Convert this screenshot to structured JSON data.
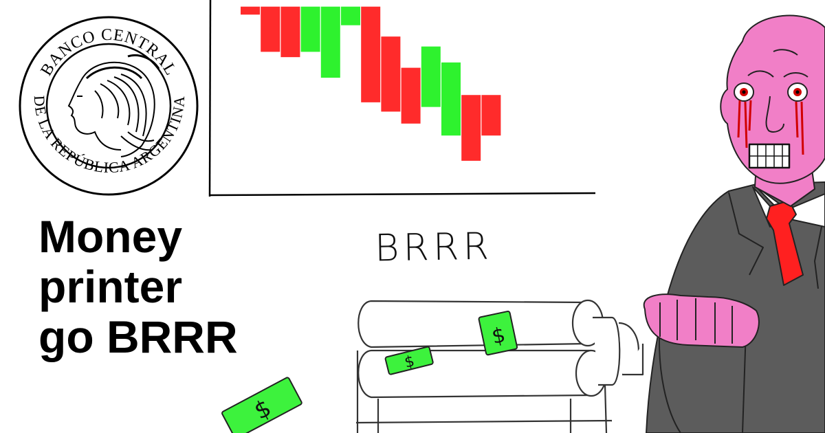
{
  "headline": {
    "line1": "Money",
    "line2": "printer",
    "line3": "go BRRR"
  },
  "sound_text": "BRRR",
  "seal": {
    "text_top": "BANCO CENTRAL",
    "text_bottom": "DE LA REPÚBLICA ARGENTINA"
  },
  "chart_data": {
    "type": "candlestick",
    "candles": [
      {
        "direction": "down",
        "open": 290,
        "close": 278
      },
      {
        "direction": "down",
        "open": 290,
        "close": 222
      },
      {
        "direction": "down",
        "open": 290,
        "close": 214
      },
      {
        "direction": "up",
        "open": 222,
        "close": 290
      },
      {
        "direction": "up",
        "open": 183,
        "close": 290
      },
      {
        "direction": "up",
        "open": 262,
        "close": 290
      },
      {
        "direction": "down",
        "open": 290,
        "close": 146
      },
      {
        "direction": "down",
        "open": 245,
        "close": 132
      },
      {
        "direction": "down",
        "open": 198,
        "close": 114
      },
      {
        "direction": "up",
        "open": 139,
        "close": 230
      },
      {
        "direction": "up",
        "open": 96,
        "close": 206
      },
      {
        "direction": "down",
        "open": 157,
        "close": 58
      },
      {
        "direction": "down",
        "open": 157,
        "close": 96
      }
    ],
    "ylim": [
      0,
      300
    ],
    "colors": {
      "up": "#2ef22e",
      "down": "#ff2b2b"
    }
  },
  "colors": {
    "skin": "#f17fc7",
    "suit": "#5c5c5c",
    "tie": "#ff2020",
    "cash": "#3df23d",
    "ink": "#000000"
  }
}
